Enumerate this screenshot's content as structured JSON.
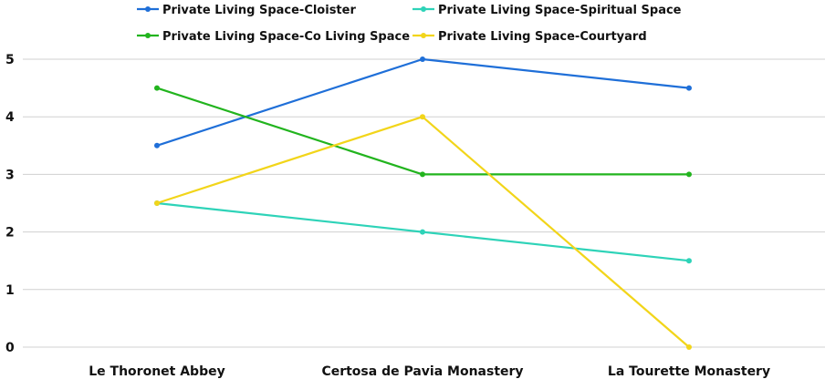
{
  "chart_data": {
    "type": "line",
    "title": "",
    "xlabel": "",
    "ylabel": "",
    "categories": [
      "Le Thoronet Abbey",
      "Certosa de Pavia Monastery",
      "La Tourette Monastery"
    ],
    "ylim": [
      0,
      5
    ],
    "yticks": [
      "0",
      "1",
      "2",
      "3",
      "4",
      "5"
    ],
    "grid": true,
    "legend_position": "top",
    "series": [
      {
        "name": "Private Living Space-Cloister",
        "color": "#1f6fd8",
        "values": [
          3.5,
          5,
          4.5
        ]
      },
      {
        "name": "Private Living Space-Spiritual Space",
        "color": "#2ed3b8",
        "values": [
          2.5,
          2,
          1.5
        ]
      },
      {
        "name": "Private Living Space-Co Living Space",
        "color": "#22b41e",
        "values": [
          4.5,
          3,
          3
        ]
      },
      {
        "name": "Private Living Space-Courtyard",
        "color": "#f2d51a",
        "values": [
          2.5,
          4,
          0
        ]
      }
    ]
  }
}
